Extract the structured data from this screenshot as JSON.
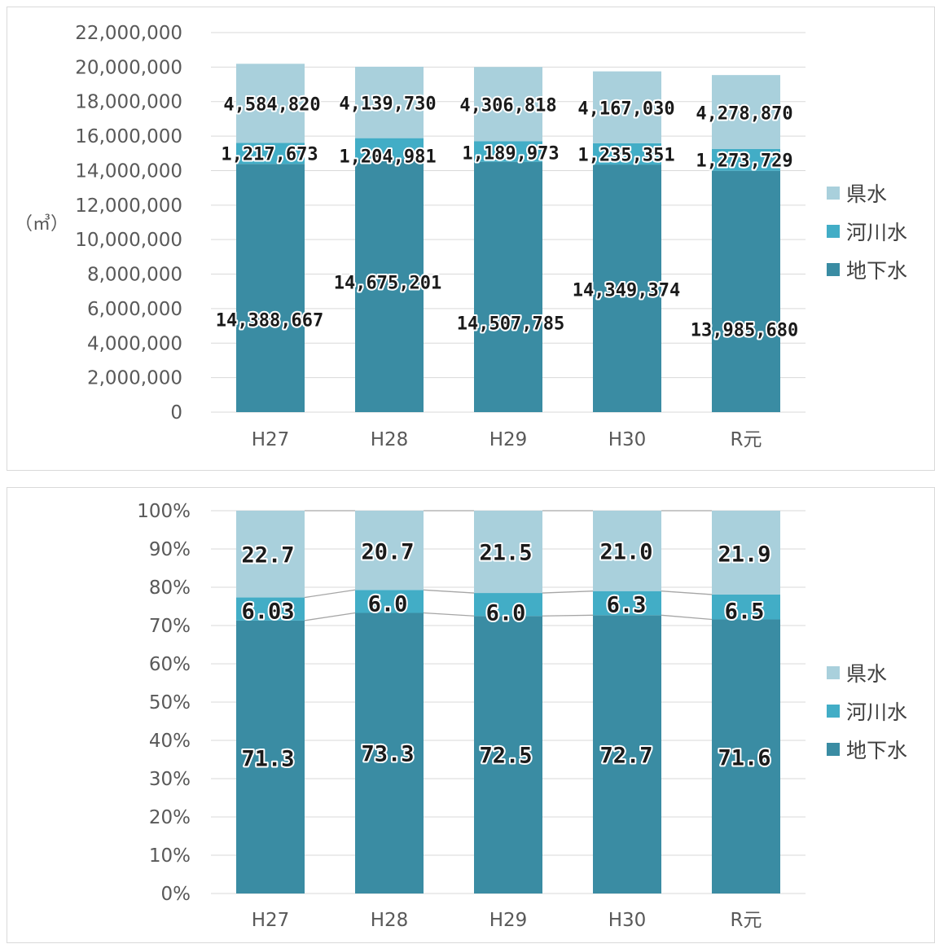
{
  "colors": {
    "ken": "#a9d0dc",
    "kasen": "#42adc6",
    "chika": "#3a8ca3",
    "grid": "#d9d9d9",
    "connector": "#a6a6a6"
  },
  "chart_data": [
    {
      "type": "bar",
      "stacked": true,
      "categories": [
        "H27",
        "H28",
        "H29",
        "H30",
        "R元"
      ],
      "ylabel": "（㎥）",
      "ylim": [
        0,
        22000000
      ],
      "ytick_step": 2000000,
      "ytick_labels": [
        "0",
        "2,000,000",
        "4,000,000",
        "6,000,000",
        "8,000,000",
        "10,000,000",
        "12,000,000",
        "14,000,000",
        "16,000,000",
        "18,000,000",
        "20,000,000",
        "22,000,000"
      ],
      "grid": true,
      "legend_position": "right",
      "series": [
        {
          "name": "地下水",
          "values": [
            14388667,
            14675201,
            14507785,
            14349374,
            13985680
          ],
          "labels": [
            "14,388,667",
            "14,675,201",
            "14,507,785",
            "14,349,374",
            "13,985,680"
          ]
        },
        {
          "name": "河川水",
          "values": [
            1217673,
            1204981,
            1189973,
            1235351,
            1273729
          ],
          "labels": [
            "1,217,673",
            "1,204,981",
            "1,189,973",
            "1,235,351",
            "1,273,729"
          ]
        },
        {
          "name": "県水",
          "values": [
            4584820,
            4139730,
            4306818,
            4167030,
            4278870
          ],
          "labels": [
            "4,584,820",
            "4,139,730",
            "4,306,818",
            "4,167,030",
            "4,278,870"
          ]
        }
      ]
    },
    {
      "type": "bar",
      "stacked": true,
      "percent": true,
      "categories": [
        "H27",
        "H28",
        "H29",
        "H30",
        "R元"
      ],
      "ylim": [
        0,
        100
      ],
      "ytick_step": 10,
      "ytick_labels": [
        "0%",
        "10%",
        "20%",
        "30%",
        "40%",
        "50%",
        "60%",
        "70%",
        "80%",
        "90%",
        "100%"
      ],
      "grid": true,
      "series_lines": true,
      "legend_position": "right",
      "series": [
        {
          "name": "地下水",
          "values": [
            71.3,
            73.3,
            72.5,
            72.7,
            71.6
          ],
          "labels": [
            "71.3",
            "73.3",
            "72.5",
            "72.7",
            "71.6"
          ]
        },
        {
          "name": "河川水",
          "values": [
            6.03,
            6.0,
            6.0,
            6.3,
            6.5
          ],
          "labels": [
            "6.03",
            "6.0",
            "6.0",
            "6.3",
            "6.5"
          ]
        },
        {
          "name": "県水",
          "values": [
            22.7,
            20.7,
            21.5,
            21.0,
            21.9
          ],
          "labels": [
            "22.7",
            "20.7",
            "21.5",
            "21.0",
            "21.9"
          ]
        }
      ]
    }
  ]
}
